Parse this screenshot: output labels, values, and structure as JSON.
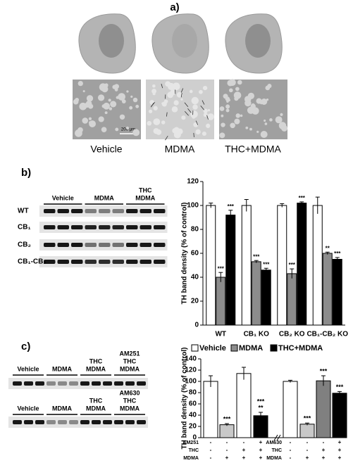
{
  "panel_a": {
    "label": "a)",
    "scale_bar": "200 µm",
    "conditions": [
      "Vehicle",
      "MDMA",
      "THC+MDMA"
    ]
  },
  "panel_b": {
    "label": "b)",
    "blot": {
      "groups": [
        [
          "Vehicle"
        ],
        [
          "MDMA"
        ],
        [
          "THC",
          "MDMA"
        ]
      ],
      "rows": [
        "WT",
        "CB₁",
        "CB₂",
        "CB₁-CB₂"
      ]
    }
  },
  "panel_c": {
    "label": "c)",
    "blots": [
      {
        "groups": [
          [
            "Vehicle"
          ],
          [
            "MDMA"
          ],
          [
            "THC",
            "MDMA"
          ],
          [
            "AM251",
            "THC",
            "MDMA"
          ]
        ]
      },
      {
        "groups": [
          [
            "Vehicle"
          ],
          [
            "MDMA"
          ],
          [
            "THC",
            "MDMA"
          ],
          [
            "AM630",
            "THC",
            "MDMA"
          ]
        ]
      }
    ]
  },
  "chart_data": [
    {
      "type": "bar",
      "ylabel": "TH band density (% of control)",
      "categories": [
        "WT",
        "CB₁ KO",
        "CB₂ KO",
        "CB₁-CB₂ KO"
      ],
      "series": [
        {
          "name": "Vehicle",
          "color": "#ffffff",
          "values": [
            100,
            100,
            100,
            100
          ],
          "errors": [
            2,
            5,
            1.5,
            7
          ]
        },
        {
          "name": "MDMA",
          "color": "#8c8c8c",
          "values": [
            40,
            53,
            43,
            60
          ],
          "errors": [
            4,
            1,
            4,
            1
          ],
          "significance": [
            "***",
            "***",
            "***",
            "**"
          ]
        },
        {
          "name": "THC+MDMA",
          "color": "#000000",
          "values": [
            92,
            46,
            102,
            55
          ],
          "errors": [
            4,
            1.5,
            1,
            1.5
          ],
          "significance": [
            "***",
            "***",
            "***",
            "***"
          ]
        }
      ],
      "ylim": [
        0,
        120
      ],
      "yticks": [
        0,
        20,
        40,
        60,
        80,
        100,
        120
      ],
      "legend": "bottom"
    },
    {
      "type": "bar",
      "ylabel": "TH band density (% of control)",
      "categories": [
        null,
        null,
        null,
        null,
        null,
        null,
        null,
        null
      ],
      "values": [
        100,
        23,
        114,
        39,
        100,
        24,
        101,
        79
      ],
      "errors": [
        10,
        2,
        11,
        6,
        2,
        2,
        9,
        3
      ],
      "colors": [
        "#ffffff",
        "#c8c8c8",
        "#ffffff",
        "#000000",
        "#ffffff",
        "#c8c8c8",
        "#808080",
        "#000000"
      ],
      "significance": [
        [],
        [
          "***"
        ],
        [],
        [
          "***",
          "**"
        ],
        [],
        [
          "***"
        ],
        [
          "***"
        ],
        [
          "***"
        ]
      ],
      "treatment_table": [
        {
          "rows": [
            {
              "name": "AM251",
              "signs": [
                "-",
                "-",
                "-",
                "+"
              ]
            },
            {
              "name": "THC",
              "signs": [
                "-",
                "-",
                "+",
                "+"
              ]
            },
            {
              "name": "MDMA",
              "signs": [
                "-",
                "+",
                "+",
                "+"
              ]
            }
          ]
        },
        {
          "rows": [
            {
              "name": "AM630",
              "signs": [
                "-",
                "-",
                "-",
                "+"
              ]
            },
            {
              "name": "THC",
              "signs": [
                "-",
                "-",
                "+",
                "+"
              ]
            },
            {
              "name": "MDMA",
              "signs": [
                "-",
                "+",
                "+",
                "+"
              ]
            }
          ]
        }
      ],
      "ylim": [
        0,
        140
      ],
      "yticks": [
        0,
        20,
        40,
        60,
        80,
        100,
        120,
        140
      ]
    }
  ]
}
